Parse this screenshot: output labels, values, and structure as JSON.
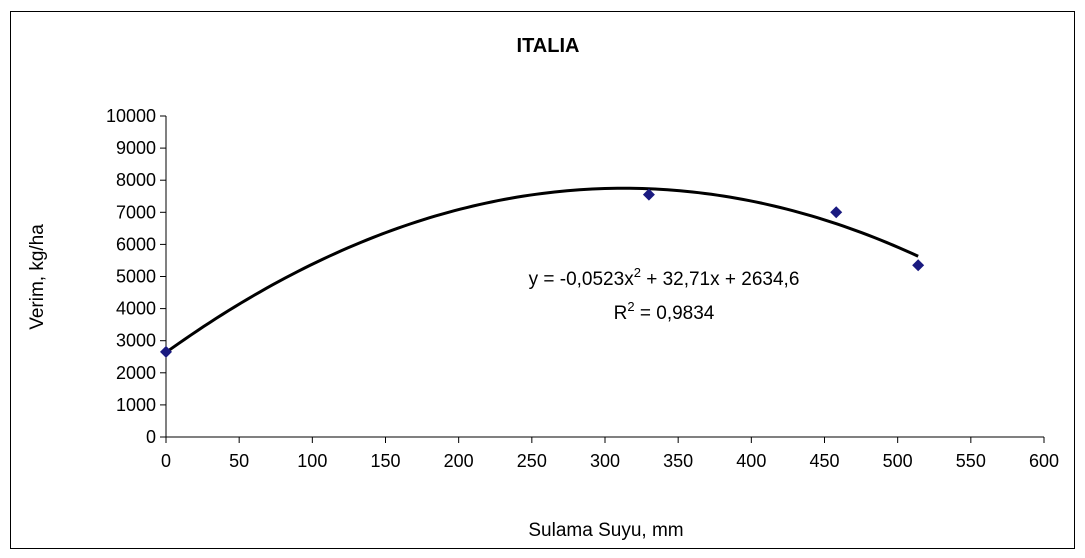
{
  "chart_data": {
    "type": "scatter",
    "title": "ITALIA",
    "xlabel": "Sulama Suyu, mm",
    "ylabel": "Verim, kg/ha",
    "xlim": [
      0,
      600
    ],
    "ylim": [
      0,
      10000
    ],
    "x_ticks": [
      "0",
      "50",
      "100",
      "150",
      "200",
      "250",
      "300",
      "350",
      "400",
      "450",
      "500",
      "550",
      "600"
    ],
    "y_ticks": [
      "0",
      "1000",
      "2000",
      "3000",
      "4000",
      "5000",
      "6000",
      "7000",
      "8000",
      "9000",
      "10000"
    ],
    "grid": false,
    "legend": "none",
    "points": [
      {
        "x": 0,
        "y": 2650
      },
      {
        "x": 330,
        "y": 7550
      },
      {
        "x": 458,
        "y": 7000
      },
      {
        "x": 514,
        "y": 5350
      }
    ],
    "trendline": {
      "type": "polynomial",
      "order": 2,
      "coefficients": {
        "a": -0.0523,
        "b": 32.71,
        "c": 2634.6
      },
      "x_range": [
        0,
        514
      ],
      "equation_text": "y = -0,0523x",
      "equation_sup": "2",
      "equation_rest": " + 32,71x + 2634,6",
      "r2_prefix": "R",
      "r2_sup": "2",
      "r2_rest": " = 0,9834"
    },
    "colors": {
      "marker": "#1a1a80",
      "trendline": "#000000",
      "axis": "#000000"
    }
  }
}
